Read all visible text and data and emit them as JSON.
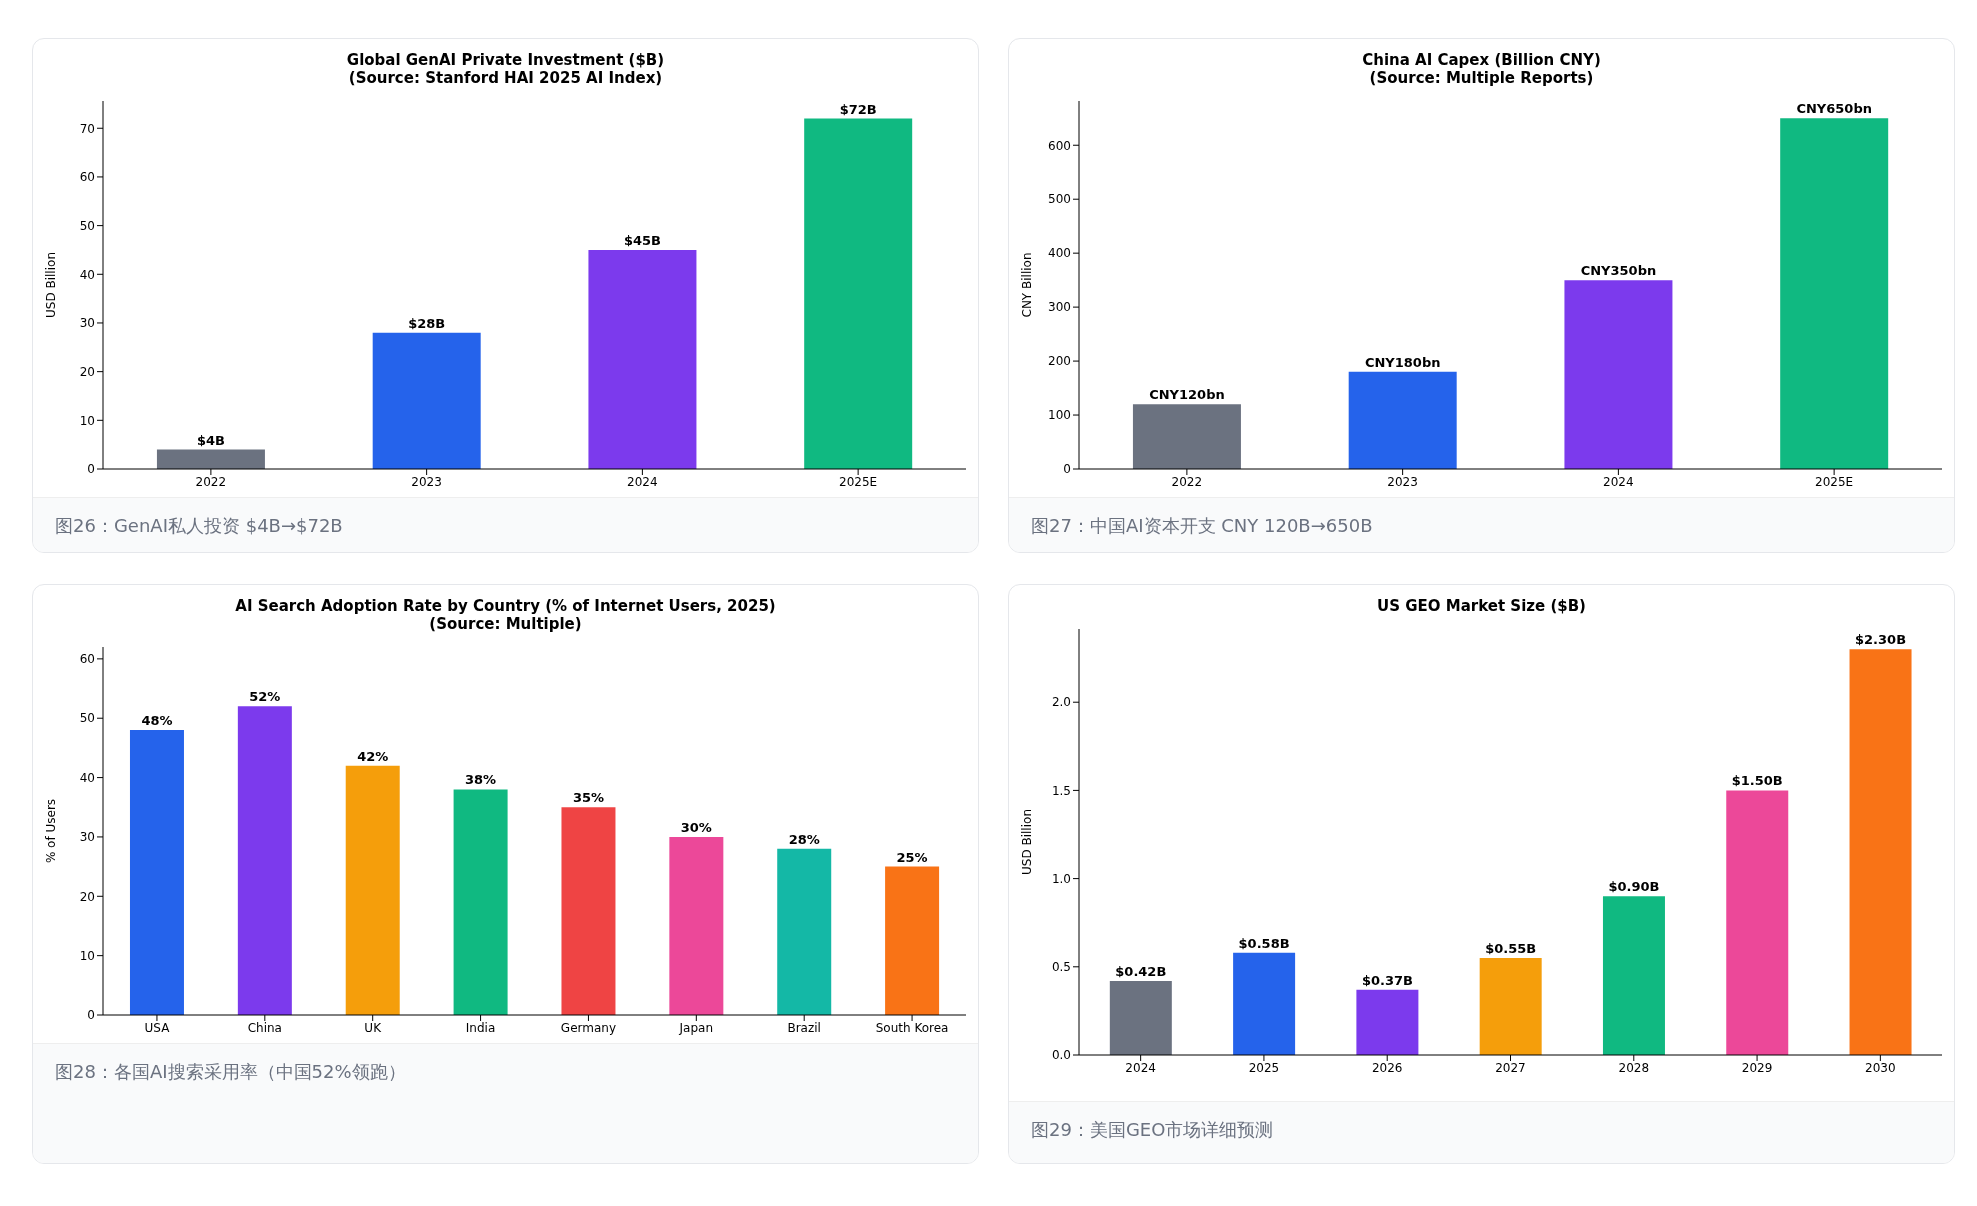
{
  "chart_data": [
    {
      "type": "bar",
      "title": "Global GenAI Private Investment ($B)",
      "subtitle": "(Source: Stanford HAI 2025 AI Index)",
      "ylabel": "USD Billion",
      "categories": [
        "2022",
        "2023",
        "2024",
        "2025E"
      ],
      "values": [
        4,
        28,
        45,
        72
      ],
      "value_labels": [
        "$4B",
        "$28B",
        "$45B",
        "$72B"
      ],
      "colors": [
        "#6b7280",
        "#2563eb",
        "#7c3aed",
        "#10b981"
      ],
      "ylim": [
        0,
        75.6
      ],
      "yticks": [
        0,
        10,
        20,
        30,
        40,
        50,
        60,
        70
      ],
      "grid": false,
      "legend": false,
      "annotations": [
        "图26：GenAI私人投资 $4B→$72B"
      ]
    },
    {
      "type": "bar",
      "title": "China AI Capex (Billion CNY)",
      "subtitle": "(Source: Multiple Reports)",
      "ylabel": "CNY Billion",
      "categories": [
        "2022",
        "2023",
        "2024",
        "2025E"
      ],
      "values": [
        120,
        180,
        350,
        650
      ],
      "value_labels": [
        "CNY120bn",
        "CNY180bn",
        "CNY350bn",
        "CNY650bn"
      ],
      "colors": [
        "#6b7280",
        "#2563eb",
        "#7c3aed",
        "#10b981"
      ],
      "ylim": [
        0,
        682
      ],
      "yticks": [
        0,
        100,
        200,
        300,
        400,
        500,
        600
      ],
      "grid": false,
      "legend": false,
      "annotations": [
        "图27：中国AI资本开支 CNY 120B→650B"
      ]
    },
    {
      "type": "bar",
      "title": "AI Search Adoption Rate by Country (% of Internet Users, 2025)",
      "subtitle": "(Source: Multiple)",
      "ylabel": "% of Users",
      "categories": [
        "USA",
        "China",
        "UK",
        "India",
        "Germany",
        "Japan",
        "Brazil",
        "South Korea"
      ],
      "values": [
        48,
        52,
        42,
        38,
        35,
        30,
        28,
        25
      ],
      "value_labels": [
        "48%",
        "52%",
        "42%",
        "38%",
        "35%",
        "30%",
        "28%",
        "25%"
      ],
      "colors": [
        "#2563eb",
        "#7c3aed",
        "#f59e0b",
        "#10b981",
        "#ef4444",
        "#ec4899",
        "#14b8a6",
        "#f97316"
      ],
      "ylim": [
        0,
        62
      ],
      "yticks": [
        0,
        10,
        20,
        30,
        40,
        50,
        60
      ],
      "grid": false,
      "legend": false,
      "annotations": [
        "图28：各国AI搜索采用率（中国52%领跑）"
      ]
    },
    {
      "type": "bar",
      "title": "US GEO Market Size ($B)",
      "ylabel": "USD Billion",
      "categories": [
        "2024",
        "2025",
        "2026",
        "2027",
        "2028",
        "2029",
        "2030"
      ],
      "values": [
        0.42,
        0.58,
        0.37,
        0.55,
        0.9,
        1.5,
        2.3
      ],
      "value_labels": [
        "$0.42B",
        "$0.58B",
        "$0.37B",
        "$0.55B",
        "$0.90B",
        "$1.50B",
        "$2.30B"
      ],
      "colors": [
        "#6b7280",
        "#2563eb",
        "#7c3aed",
        "#f59e0b",
        "#10b981",
        "#ec4899",
        "#f97316"
      ],
      "ylim": [
        0,
        2.415
      ],
      "yticks": [
        {
          "value": 0,
          "label": "0.0"
        },
        {
          "value": 0.5,
          "label": "0.5"
        },
        {
          "value": 1,
          "label": "1.0"
        },
        {
          "value": 1.5,
          "label": "1.5"
        },
        {
          "value": 2,
          "label": "2.0"
        }
      ],
      "grid": false,
      "legend": false,
      "annotations": [
        "图29：美国GEO市场详细预测"
      ]
    }
  ]
}
